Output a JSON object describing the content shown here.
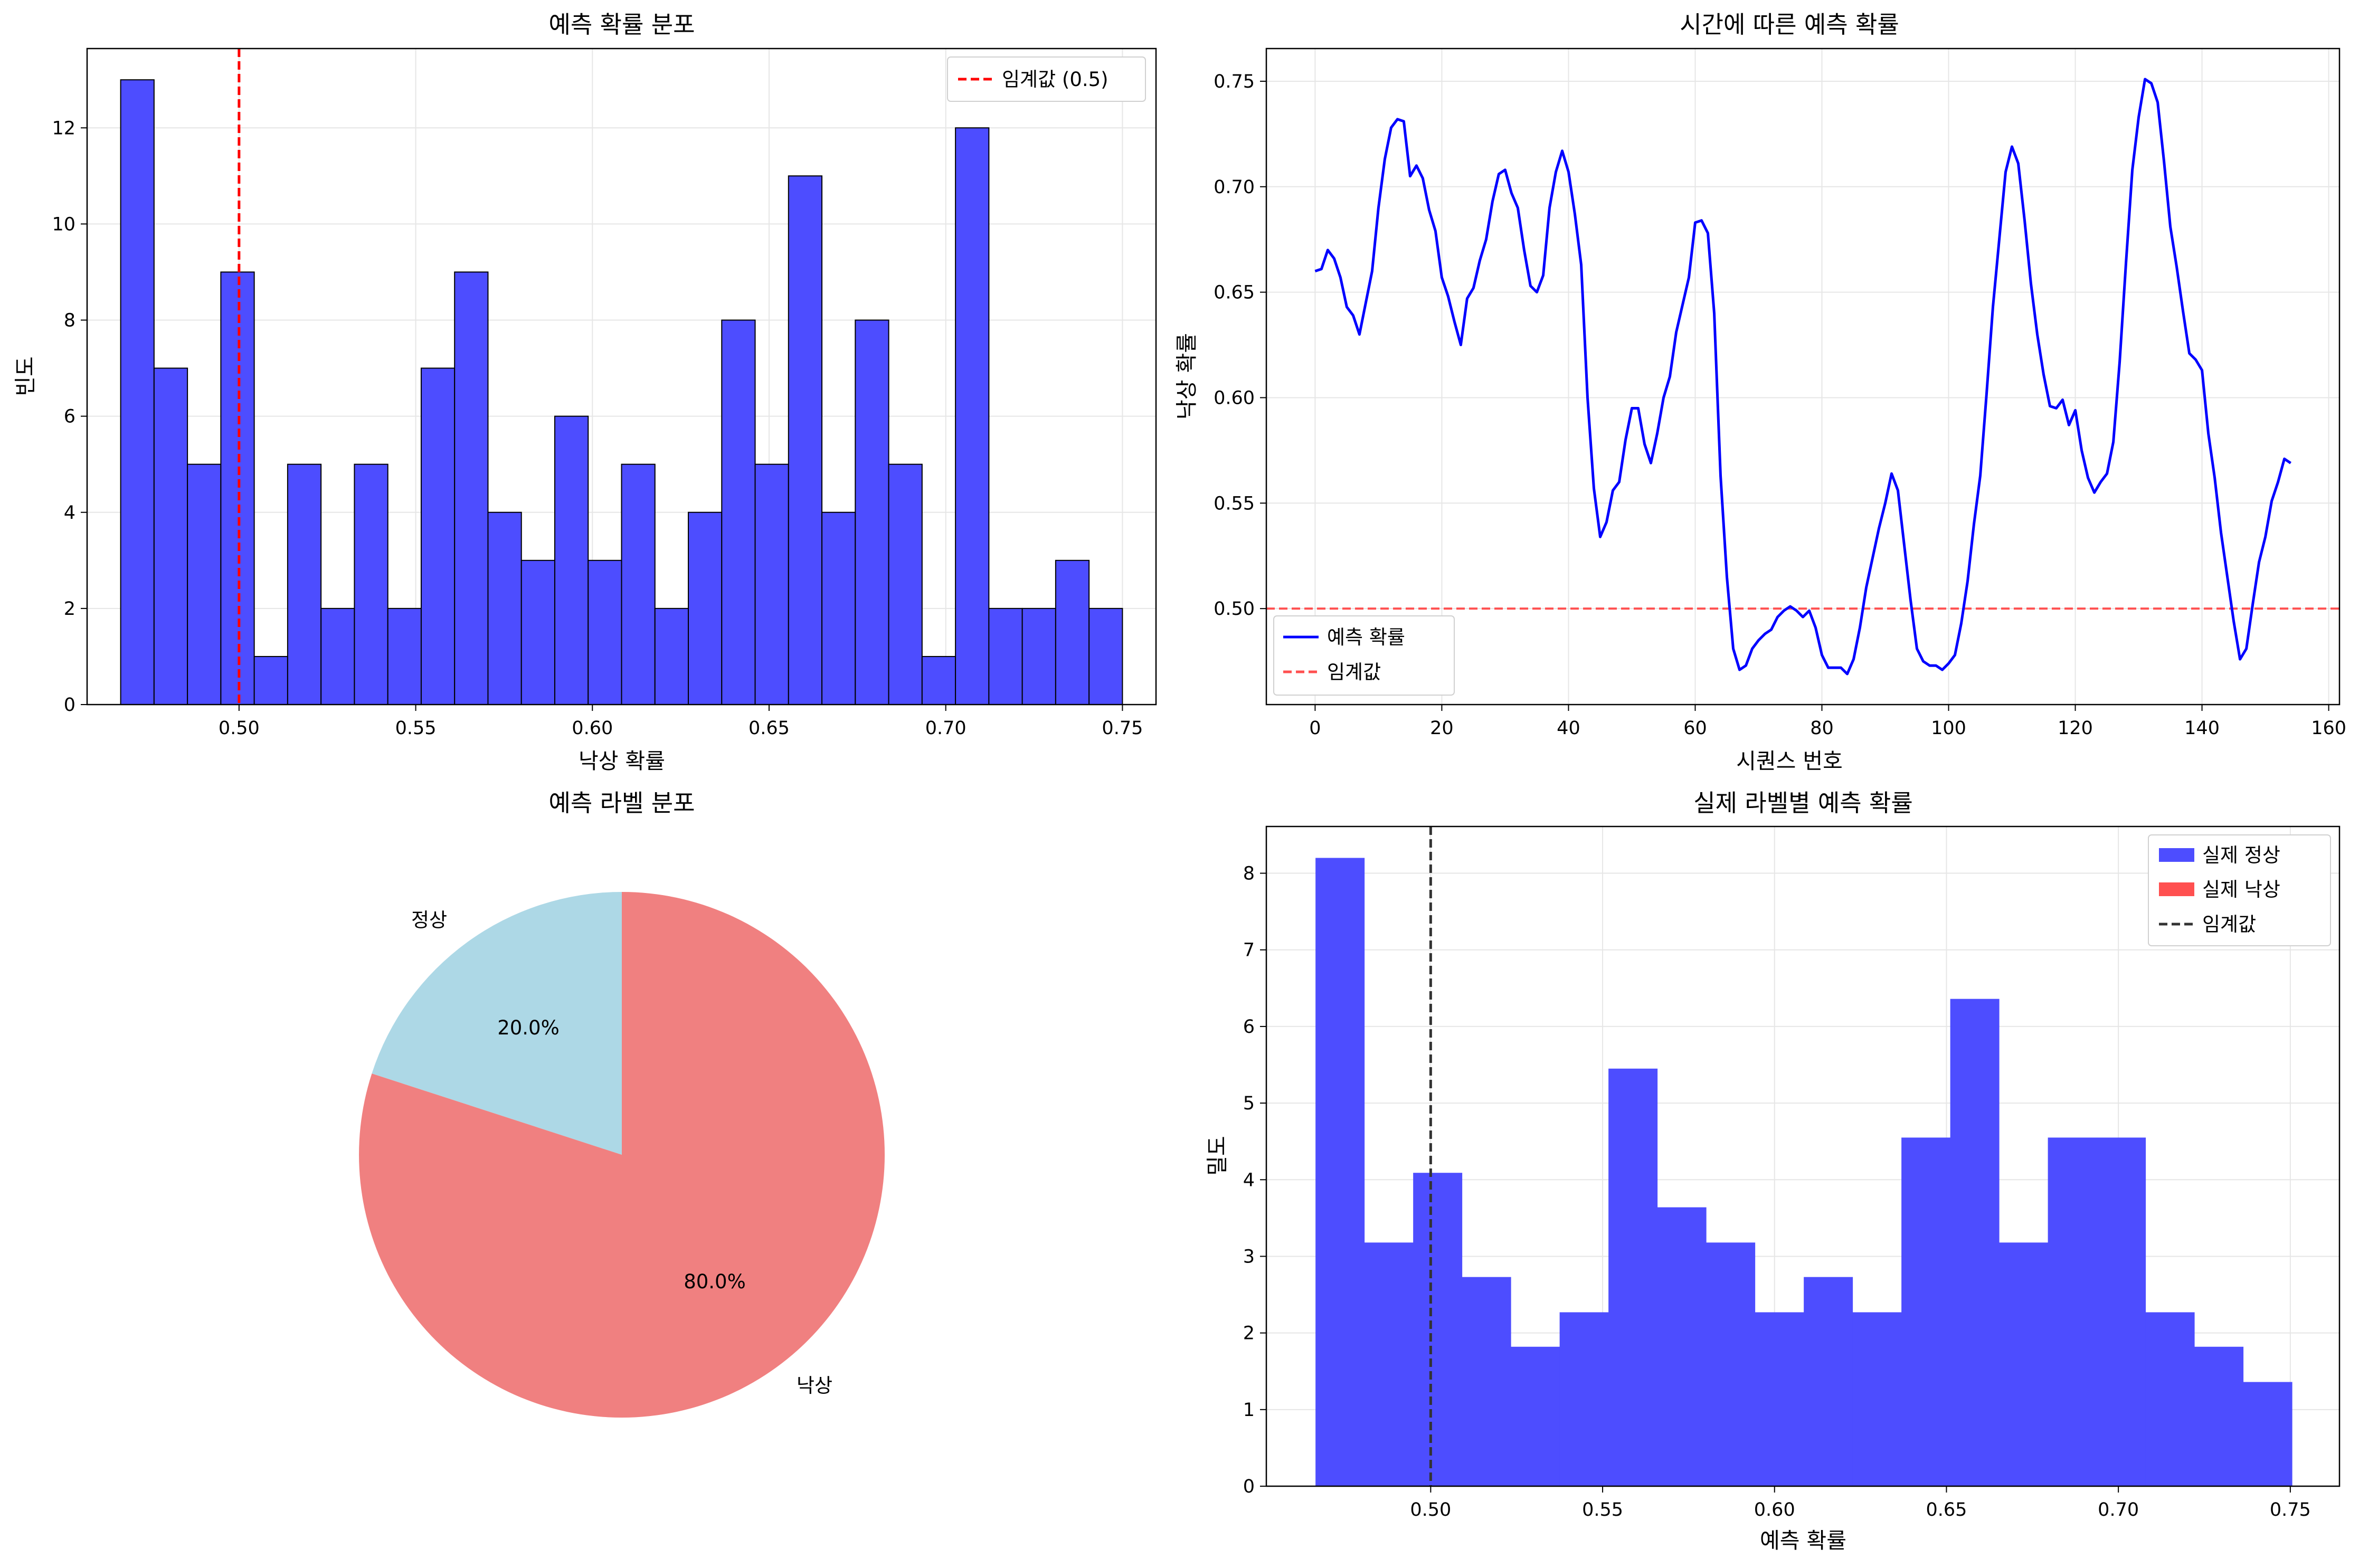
{
  "colors": {
    "blue": "#0000ff",
    "hist_fill": "#4d4dff",
    "red_threshold": "#ff0000",
    "red_legend": "#ff5050",
    "pie_normal": "#add8e6",
    "pie_fall": "#f08080",
    "grid": "#e6e6e6",
    "threshold_dark": "#333333"
  },
  "chart_data": [
    {
      "id": "hist",
      "type": "bar",
      "title": "예측 확률 분포",
      "xlabel": "낙상 확률",
      "ylabel": "빈도",
      "xlim": [
        0.457,
        0.7595
      ],
      "ylim": [
        0,
        13.65
      ],
      "xticks": [
        "0.50",
        "0.55",
        "0.60",
        "0.65",
        "0.70",
        "0.75"
      ],
      "xtick_values": [
        0.5,
        0.55,
        0.6,
        0.65,
        0.7,
        0.75
      ],
      "yticks": [
        "0",
        "2",
        "4",
        "6",
        "8",
        "10",
        "12"
      ],
      "ytick_values": [
        0,
        2,
        4,
        6,
        8,
        10,
        12
      ],
      "bin_start": 0.4665,
      "bin_width": 0.00945,
      "values": [
        13,
        7,
        5,
        9,
        1,
        5,
        2,
        5,
        2,
        7,
        9,
        4,
        3,
        6,
        3,
        5,
        2,
        4,
        8,
        5,
        11,
        4,
        8,
        5,
        1,
        12,
        2,
        2,
        3,
        2
      ],
      "threshold": 0.5,
      "legend": [
        "임계값 (0.5)"
      ],
      "legend_position": "upper right",
      "grid": true
    },
    {
      "id": "line",
      "type": "line",
      "title": "시간에 따른 예측 확률",
      "xlabel": "시퀀스 번호",
      "ylabel": "낙상 확률",
      "xlim": [
        -7.7,
        161.7
      ],
      "ylim": [
        0.4545,
        0.7655
      ],
      "xticks": [
        "0",
        "20",
        "40",
        "60",
        "80",
        "100",
        "120",
        "140",
        "160"
      ],
      "xtick_values": [
        0,
        20,
        40,
        60,
        80,
        100,
        120,
        140,
        160
      ],
      "yticks": [
        "0.50",
        "0.55",
        "0.60",
        "0.65",
        "0.70",
        "0.75"
      ],
      "ytick_values": [
        0.5,
        0.55,
        0.6,
        0.65,
        0.7,
        0.75
      ],
      "series": [
        {
          "name": "예측 확률",
          "x": [
            0,
            1,
            2,
            3,
            4,
            5,
            6,
            7,
            8,
            9,
            10,
            11,
            12,
            13,
            14,
            15,
            16,
            17,
            18,
            19,
            20,
            21,
            22,
            23,
            24,
            25,
            26,
            27,
            28,
            29,
            30,
            31,
            32,
            33,
            34,
            35,
            36,
            37,
            38,
            39,
            40,
            41,
            42,
            43,
            44,
            45,
            46,
            47,
            48,
            49,
            50,
            51,
            52,
            53,
            54,
            55,
            56,
            57,
            58,
            59,
            60,
            61,
            62,
            63,
            64,
            65,
            66,
            67,
            68,
            69,
            70,
            71,
            72,
            73,
            74,
            75,
            76,
            77,
            78,
            79,
            80,
            81,
            82,
            83,
            84,
            85,
            86,
            87,
            88,
            89,
            90,
            91,
            92,
            93,
            94,
            95,
            96,
            97,
            98,
            99,
            100,
            101,
            102,
            103,
            104,
            105,
            106,
            107,
            108,
            109,
            110,
            111,
            112,
            113,
            114,
            115,
            116,
            117,
            118,
            119,
            120,
            121,
            122,
            123,
            124,
            125,
            126,
            127,
            128,
            129,
            130,
            131,
            132,
            133,
            134,
            135,
            136,
            137,
            138,
            139,
            140,
            141,
            142,
            143,
            144,
            145,
            146,
            147,
            148,
            149,
            150,
            151,
            152,
            153,
            154
          ],
          "y": [
            0.66,
            0.661,
            0.67,
            0.666,
            0.657,
            0.643,
            0.639,
            0.63,
            0.645,
            0.66,
            0.69,
            0.713,
            0.728,
            0.732,
            0.731,
            0.705,
            0.71,
            0.704,
            0.689,
            0.679,
            0.657,
            0.648,
            0.636,
            0.625,
            0.647,
            0.652,
            0.665,
            0.675,
            0.693,
            0.706,
            0.708,
            0.697,
            0.69,
            0.67,
            0.653,
            0.65,
            0.658,
            0.69,
            0.707,
            0.717,
            0.707,
            0.687,
            0.663,
            0.6,
            0.557,
            0.534,
            0.541,
            0.556,
            0.56,
            0.58,
            0.595,
            0.595,
            0.578,
            0.569,
            0.583,
            0.6,
            0.61,
            0.631,
            0.644,
            0.657,
            0.683,
            0.684,
            0.678,
            0.64,
            0.563,
            0.515,
            0.481,
            0.471,
            0.473,
            0.481,
            0.485,
            0.488,
            0.49,
            0.496,
            0.499,
            0.501,
            0.499,
            0.496,
            0.499,
            0.491,
            0.478,
            0.472,
            0.472,
            0.472,
            0.469,
            0.476,
            0.491,
            0.51,
            0.524,
            0.538,
            0.55,
            0.564,
            0.556,
            0.53,
            0.504,
            0.481,
            0.475,
            0.473,
            0.473,
            0.471,
            0.474,
            0.478,
            0.493,
            0.513,
            0.54,
            0.563,
            0.602,
            0.643,
            0.675,
            0.707,
            0.719,
            0.711,
            0.684,
            0.654,
            0.63,
            0.611,
            0.596,
            0.595,
            0.599,
            0.587,
            0.594,
            0.575,
            0.562,
            0.555,
            0.56,
            0.564,
            0.579,
            0.617,
            0.664,
            0.708,
            0.733,
            0.751,
            0.749,
            0.74,
            0.712,
            0.681,
            0.662,
            0.641,
            0.621,
            0.618,
            0.613,
            0.583,
            0.562,
            0.536,
            0.515,
            0.494,
            0.476,
            0.481,
            0.502,
            0.522,
            0.534,
            0.551,
            0.56,
            0.571,
            0.569
          ]
        }
      ],
      "threshold": 0.5,
      "legend": [
        "예측 확률",
        "임계값"
      ],
      "legend_position": "lower left",
      "grid": true
    },
    {
      "id": "pie",
      "type": "pie",
      "title": "예측 라벨 분포",
      "labels": [
        "정상",
        "낙상"
      ],
      "values": [
        20.0,
        80.0
      ],
      "autopct": [
        "20.0%",
        "80.0%"
      ],
      "start_angle": 90
    },
    {
      "id": "density",
      "type": "bar",
      "title": "실제 라벨별 예측 확률",
      "xlabel": "예측 확률",
      "ylabel": "밀도",
      "xlim": [
        0.4522,
        0.7643
      ],
      "ylim": [
        0,
        8.61
      ],
      "xticks": [
        "0.50",
        "0.55",
        "0.60",
        "0.65",
        "0.70",
        "0.75"
      ],
      "xtick_values": [
        0.5,
        0.55,
        0.6,
        0.65,
        0.7,
        0.75
      ],
      "yticks": [
        "0",
        "1",
        "2",
        "3",
        "4",
        "5",
        "6",
        "7",
        "8"
      ],
      "ytick_values": [
        0,
        1,
        2,
        3,
        4,
        5,
        6,
        7,
        8
      ],
      "bin_start": 0.4665,
      "bin_width": 0.0142,
      "series": [
        {
          "name": "실제 정상",
          "values": []
        },
        {
          "name": "실제 낙상",
          "values": [
            8.2,
            3.18,
            4.09,
            2.73,
            1.82,
            2.27,
            5.45,
            3.64,
            3.18,
            2.27,
            2.73,
            2.27,
            4.55,
            6.36,
            3.18,
            4.55,
            4.55,
            2.27,
            1.82,
            1.36
          ]
        }
      ],
      "threshold": 0.5,
      "legend": [
        "실제 정상",
        "실제 낙상",
        "임계값"
      ],
      "legend_position": "upper right",
      "grid": true
    }
  ]
}
